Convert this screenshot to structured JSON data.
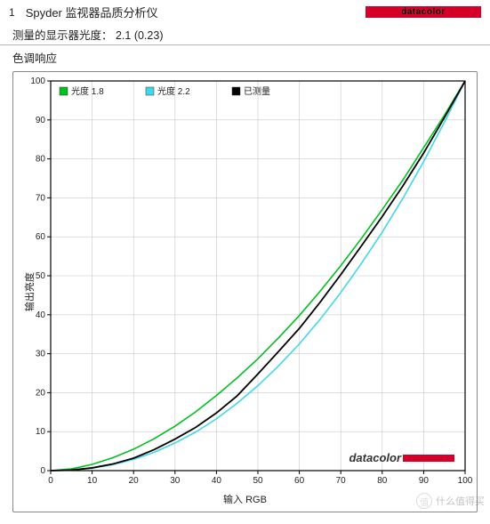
{
  "header": {
    "index": "1",
    "title": "Spyder 监视器品质分析仪",
    "brand_text": "datacolor",
    "brand_bg": "#d4002a"
  },
  "measured_line": "测量的显示器光度：  2.1  (0.23)",
  "subtitle": "色调响应",
  "chart": {
    "type": "line",
    "background_color": "#ffffff",
    "plot_bg": "#ffffff",
    "grid_color": "#c8c8c8",
    "axis_color": "#000000",
    "tick_fontsize": 10,
    "label_fontsize": 11,
    "xlabel": "输入 RGB",
    "ylabel": "输出亮度",
    "xlim": [
      0,
      100
    ],
    "ylim": [
      0,
      100
    ],
    "xtick_step": 10,
    "ytick_step": 10,
    "legend": {
      "position": "top-left",
      "fontsize": 10,
      "items": [
        {
          "label": "光度 1.8",
          "color": "#00c020"
        },
        {
          "label": "光度 2.2",
          "color": "#40d8e8"
        },
        {
          "label": "已测量",
          "color": "#000000"
        }
      ]
    },
    "series": [
      {
        "name": "gamma_1_8",
        "color": "#00c020",
        "width": 1.6,
        "points": [
          [
            0,
            0
          ],
          [
            5,
            0.45
          ],
          [
            10,
            1.6
          ],
          [
            15,
            3.3
          ],
          [
            20,
            5.5
          ],
          [
            25,
            8.2
          ],
          [
            30,
            11.4
          ],
          [
            35,
            15.1
          ],
          [
            40,
            19.3
          ],
          [
            45,
            23.8
          ],
          [
            50,
            28.7
          ],
          [
            55,
            34.1
          ],
          [
            60,
            39.8
          ],
          [
            65,
            46.0
          ],
          [
            70,
            52.6
          ],
          [
            75,
            59.6
          ],
          [
            80,
            67.0
          ],
          [
            85,
            74.6
          ],
          [
            90,
            82.9
          ],
          [
            95,
            91.2
          ],
          [
            100,
            100
          ]
        ]
      },
      {
        "name": "gamma_2_2",
        "color": "#40d8e8",
        "width": 1.6,
        "points": [
          [
            0,
            0
          ],
          [
            5,
            0.14
          ],
          [
            10,
            0.63
          ],
          [
            15,
            1.53
          ],
          [
            20,
            2.9
          ],
          [
            25,
            4.7
          ],
          [
            30,
            7.1
          ],
          [
            35,
            9.9
          ],
          [
            40,
            13.3
          ],
          [
            45,
            17.3
          ],
          [
            50,
            21.8
          ],
          [
            55,
            26.9
          ],
          [
            60,
            32.5
          ],
          [
            65,
            38.8
          ],
          [
            70,
            45.7
          ],
          [
            75,
            53.2
          ],
          [
            80,
            61.2
          ],
          [
            85,
            69.9
          ],
          [
            90,
            79.3
          ],
          [
            95,
            89.4
          ],
          [
            100,
            100
          ]
        ]
      },
      {
        "name": "measured",
        "color": "#000000",
        "width": 1.8,
        "points": [
          [
            0,
            0
          ],
          [
            5,
            0.15
          ],
          [
            10,
            0.7
          ],
          [
            15,
            1.7
          ],
          [
            20,
            3.2
          ],
          [
            25,
            5.4
          ],
          [
            30,
            8.1
          ],
          [
            35,
            11.1
          ],
          [
            40,
            14.8
          ],
          [
            45,
            19.2
          ],
          [
            50,
            24.8
          ],
          [
            55,
            30.6
          ],
          [
            60,
            36.5
          ],
          [
            65,
            43.2
          ],
          [
            70,
            50.3
          ],
          [
            75,
            57.7
          ],
          [
            80,
            65.2
          ],
          [
            85,
            73.1
          ],
          [
            90,
            81.5
          ],
          [
            95,
            90.6
          ],
          [
            100,
            100
          ]
        ]
      }
    ],
    "inner_brand": {
      "text": "datacolor",
      "text_color": "#333333",
      "bar_color": "#d4002a"
    }
  },
  "watermark": {
    "text": "什么值得买",
    "icon": "值"
  }
}
